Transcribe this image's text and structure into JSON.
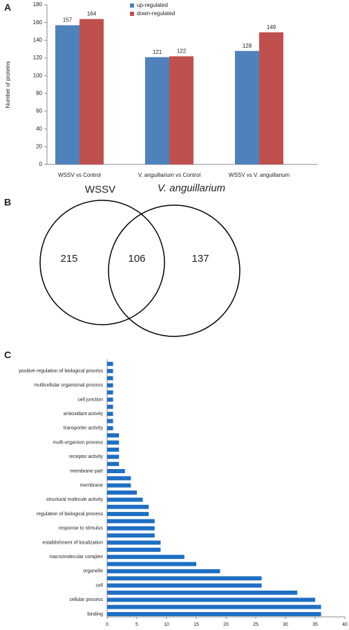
{
  "chart_data": [
    {
      "type": "bar",
      "label": "A",
      "ylabel": "Number of proteins",
      "categories": [
        "WSSV vs Control",
        "V. anguillarium  vs Control",
        "WSSV vs V. anguillarium"
      ],
      "series": [
        {
          "name": "up-regulated",
          "color": "#4f81bd",
          "values": [
            157,
            121,
            128
          ]
        },
        {
          "name": "down-regulated",
          "color": "#c0504d",
          "values": [
            164,
            122,
            149
          ]
        }
      ],
      "ylim": [
        0,
        180
      ],
      "yticks": [
        0,
        20,
        40,
        60,
        80,
        100,
        120,
        140,
        160,
        180
      ],
      "legend": "top"
    },
    {
      "type": "venn",
      "label": "B",
      "sets": [
        "WSSV",
        "V. anguillarium"
      ],
      "values": [
        215,
        106,
        137
      ]
    },
    {
      "type": "hbar",
      "label": "C",
      "color": "#1f6fc4",
      "categories": [
        "binding",
        null,
        "cellular process",
        null,
        "cell",
        null,
        "organelle",
        null,
        "macromolecular complex",
        null,
        "establishment of localization",
        null,
        "response to stimulus",
        null,
        "regulation of biological process",
        null,
        "structural molecule activity",
        null,
        "membrane",
        null,
        "membrane part",
        null,
        "receptor activity",
        null,
        "multi-organism process",
        null,
        "transporter activity",
        null,
        "antioxidant activity",
        null,
        "cell junction",
        null,
        "multicellular organismal process",
        null,
        "positive regulation of biological process",
        null
      ],
      "values": [
        36,
        36,
        35,
        32,
        26,
        26,
        19,
        15,
        13,
        9,
        9,
        8,
        8,
        8,
        7,
        7,
        6,
        5,
        4,
        4,
        3,
        2,
        2,
        2,
        2,
        2,
        1,
        1,
        1,
        1,
        1,
        1,
        1,
        1,
        1,
        1
      ],
      "xlim": [
        0,
        40
      ],
      "xticks": [
        0,
        5,
        10,
        15,
        20,
        25,
        30,
        35,
        40
      ]
    }
  ]
}
